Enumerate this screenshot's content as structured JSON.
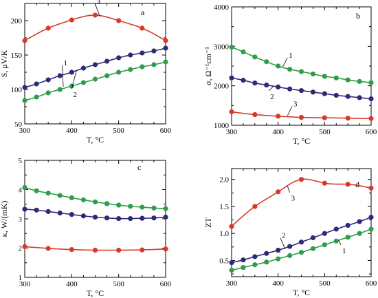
{
  "chart_data": [
    {
      "panel": "a",
      "type": "scatter",
      "xlabel": "T, °C",
      "ylabel": "S, μV/K",
      "xlim": [
        300,
        600
      ],
      "ylim": [
        50,
        225
      ],
      "xticks": [
        300,
        400,
        500,
        600
      ],
      "yticks": [
        50,
        100,
        150,
        200
      ],
      "series": [
        {
          "label": "1",
          "color": "#2e9e4a",
          "x": [
            300,
            325,
            350,
            375,
            400,
            425,
            450,
            475,
            500,
            525,
            550,
            575,
            600
          ],
          "y": [
            84,
            89,
            95,
            100,
            105,
            110,
            115,
            120,
            125,
            129,
            133,
            136,
            140
          ]
        },
        {
          "label": "2",
          "color": "#2e2a7a",
          "x": [
            300,
            325,
            350,
            375,
            400,
            425,
            450,
            475,
            500,
            525,
            550,
            575,
            600
          ],
          "y": [
            103,
            108,
            114,
            120,
            125,
            131,
            136,
            141,
            146,
            150,
            153,
            156,
            160
          ]
        },
        {
          "label": "3",
          "color": "#d83a2a",
          "x": [
            300,
            350,
            400,
            450,
            500,
            550,
            600
          ],
          "y": [
            171,
            189,
            201,
            208,
            200,
            189,
            171
          ]
        }
      ]
    },
    {
      "panel": "b",
      "type": "scatter",
      "xlabel": "T, °C",
      "ylabel": "σ, Ω⁻¹cm⁻¹",
      "xlim": [
        300,
        600
      ],
      "ylim": [
        1000,
        4000
      ],
      "xticks": [
        300,
        400,
        500,
        600
      ],
      "yticks": [
        1000,
        2000,
        3000,
        4000
      ],
      "series": [
        {
          "label": "1",
          "color": "#2e9e4a",
          "x": [
            300,
            325,
            350,
            375,
            400,
            425,
            450,
            475,
            500,
            525,
            550,
            575,
            600
          ],
          "y": [
            2980,
            2860,
            2730,
            2610,
            2500,
            2420,
            2360,
            2300,
            2240,
            2200,
            2150,
            2110,
            2080
          ]
        },
        {
          "label": "2",
          "color": "#2e2a7a",
          "x": [
            300,
            325,
            350,
            375,
            400,
            425,
            450,
            475,
            500,
            525,
            550,
            575,
            600
          ],
          "y": [
            2200,
            2140,
            2070,
            2020,
            1970,
            1920,
            1880,
            1840,
            1800,
            1760,
            1730,
            1700,
            1670
          ]
        },
        {
          "label": "3",
          "color": "#d83a2a",
          "x": [
            300,
            350,
            400,
            450,
            500,
            550,
            600
          ],
          "y": [
            1340,
            1270,
            1230,
            1200,
            1190,
            1180,
            1170
          ]
        }
      ]
    },
    {
      "panel": "c",
      "type": "scatter",
      "xlabel": "T, °C",
      "ylabel": "κ, W/(mK)",
      "xlim": [
        300,
        600
      ],
      "ylim": [
        1,
        5
      ],
      "xticks": [
        300,
        400,
        500,
        600
      ],
      "yticks": [
        1,
        2,
        3,
        4,
        5
      ],
      "series": [
        {
          "label": "1",
          "color": "#2e9e4a",
          "x": [
            300,
            325,
            350,
            375,
            400,
            425,
            450,
            475,
            500,
            525,
            550,
            575,
            600
          ],
          "y": [
            4.07,
            3.96,
            3.88,
            3.8,
            3.72,
            3.65,
            3.58,
            3.52,
            3.47,
            3.43,
            3.4,
            3.37,
            3.35
          ]
        },
        {
          "label": "2",
          "color": "#2e2a7a",
          "x": [
            300,
            325,
            350,
            375,
            400,
            425,
            450,
            475,
            500,
            525,
            550,
            575,
            600
          ],
          "y": [
            3.33,
            3.3,
            3.25,
            3.2,
            3.15,
            3.1,
            3.06,
            3.03,
            3.01,
            3.01,
            3.02,
            3.03,
            3.06
          ]
        },
        {
          "label": "3",
          "color": "#d83a2a",
          "x": [
            300,
            350,
            400,
            450,
            500,
            550,
            600
          ],
          "y": [
            2.05,
            1.99,
            1.95,
            1.93,
            1.93,
            1.94,
            1.97
          ]
        }
      ]
    },
    {
      "panel": "d",
      "type": "scatter",
      "xlabel": "T, °C",
      "ylabel": "ZT",
      "xlim": [
        300,
        600
      ],
      "ylim": [
        0.2,
        2.2
      ],
      "xticks": [
        300,
        400,
        500,
        600
      ],
      "yticks": [
        0.5,
        1.0,
        1.5,
        2.0
      ],
      "series": [
        {
          "label": "1",
          "color": "#2e9e4a",
          "x": [
            300,
            325,
            350,
            375,
            400,
            425,
            450,
            475,
            500,
            525,
            550,
            575,
            600
          ],
          "y": [
            0.32,
            0.37,
            0.42,
            0.47,
            0.53,
            0.59,
            0.65,
            0.72,
            0.79,
            0.86,
            0.93,
            1.0,
            1.08
          ]
        },
        {
          "label": "2",
          "color": "#2e2a7a",
          "x": [
            300,
            325,
            350,
            375,
            400,
            425,
            450,
            475,
            500,
            525,
            550,
            575,
            600
          ],
          "y": [
            0.46,
            0.51,
            0.57,
            0.63,
            0.69,
            0.76,
            0.84,
            0.92,
            1.0,
            1.08,
            1.15,
            1.22,
            1.3
          ]
        },
        {
          "label": "3",
          "color": "#d83a2a",
          "x": [
            300,
            350,
            400,
            450,
            500,
            550,
            600
          ],
          "y": [
            1.13,
            1.5,
            1.77,
            2.0,
            1.93,
            1.91,
            1.84
          ]
        }
      ]
    }
  ]
}
